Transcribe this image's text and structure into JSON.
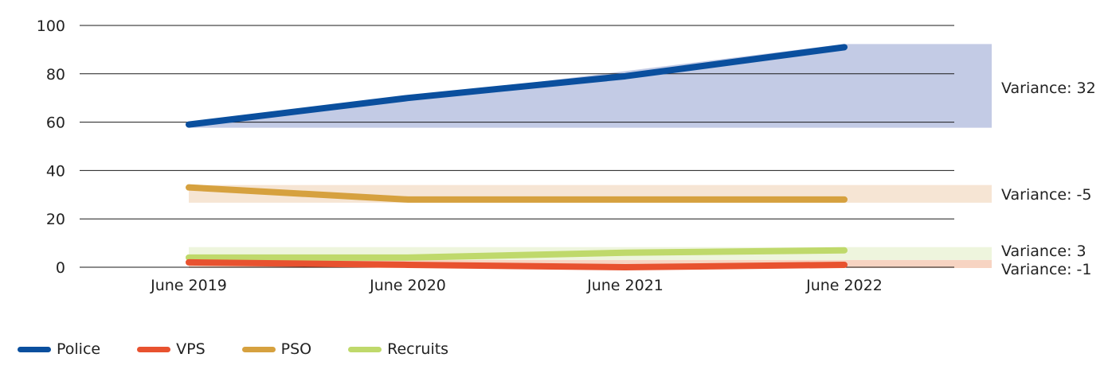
{
  "chart_data": {
    "type": "line",
    "categories": [
      "June 2019",
      "June 2020",
      "June 2021",
      "June 2022"
    ],
    "ylim": [
      0,
      100
    ],
    "yticks": [
      0,
      20,
      40,
      60,
      80,
      100
    ],
    "grid": true,
    "legend_position": "bottom-left",
    "series": [
      {
        "name": "Police",
        "color": "#0a4f9e",
        "band_color": "#c3cbe5",
        "values": [
          59,
          70,
          79,
          91
        ],
        "variance": "Variance: 32"
      },
      {
        "name": "VPS",
        "color": "#e8522f",
        "band_color": "#f7d4c2",
        "values": [
          2,
          1,
          0,
          1
        ],
        "variance": "Variance: -1"
      },
      {
        "name": "PSO",
        "color": "#d6a13f",
        "band_color": "#f6e5d4",
        "values": [
          33,
          28,
          28,
          28
        ],
        "variance": "Variance: -5"
      },
      {
        "name": "Recruits",
        "color": "#bfd96b",
        "band_color": "#eef5dd",
        "values": [
          4,
          4,
          6,
          7
        ],
        "variance": "Variance: 3"
      }
    ]
  }
}
